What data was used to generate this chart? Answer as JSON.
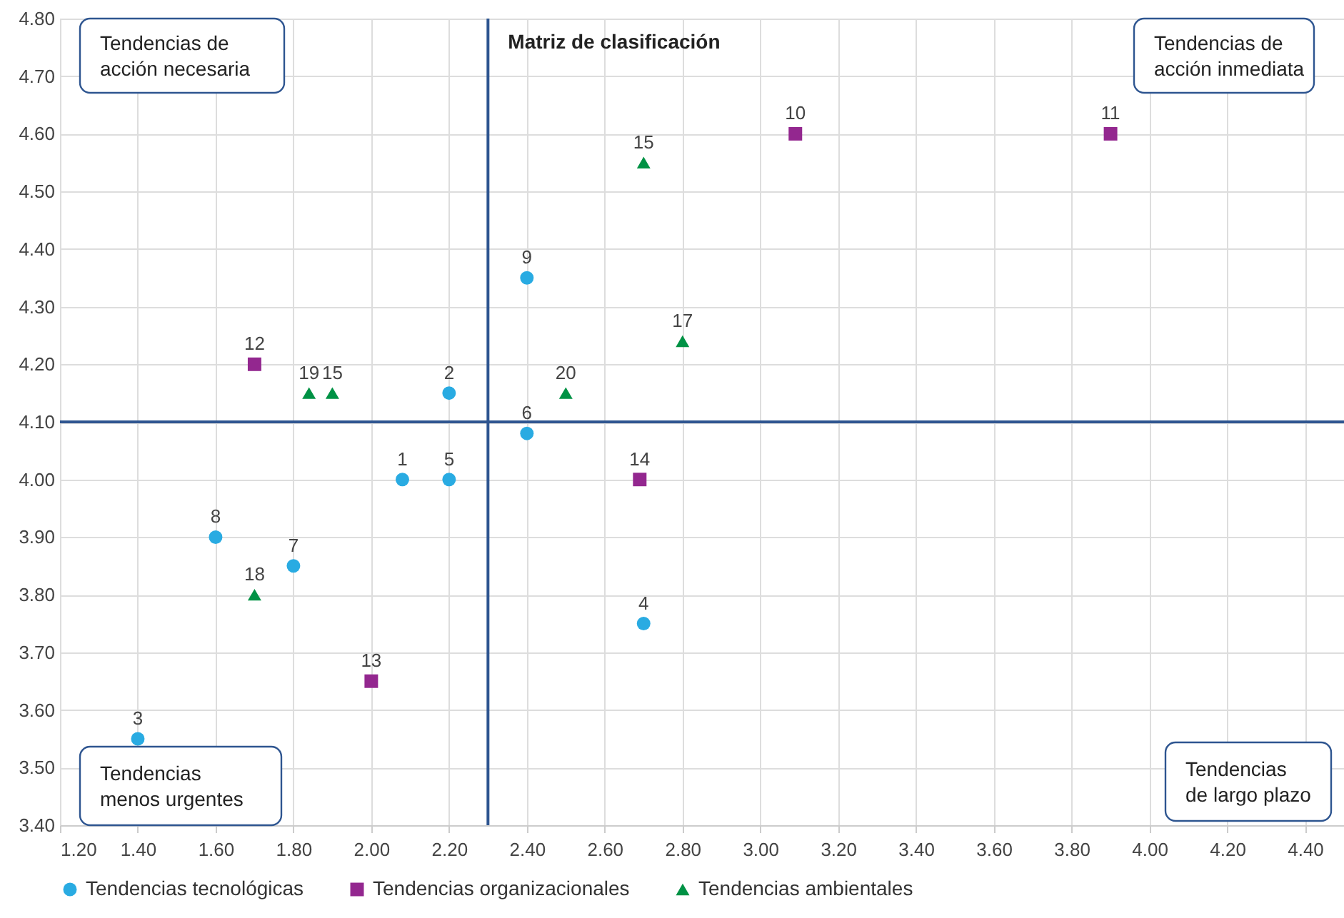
{
  "chart_data": {
    "type": "scatter",
    "xlim": [
      1.2,
      4.5
    ],
    "ylim": [
      3.4,
      4.8
    ],
    "xticks": [
      {
        "value": 1.2,
        "label": "1.20"
      },
      {
        "value": 1.4,
        "label": "1.40"
      },
      {
        "value": 1.6,
        "label": "1.60"
      },
      {
        "value": 1.8,
        "label": "1.80"
      },
      {
        "value": 2.0,
        "label": "2.00"
      },
      {
        "value": 2.2,
        "label": "2.20"
      },
      {
        "value": 2.4,
        "label": "2.40"
      },
      {
        "value": 2.6,
        "label": "2.60"
      },
      {
        "value": 2.8,
        "label": "2.80"
      },
      {
        "value": 3.0,
        "label": "3.00"
      },
      {
        "value": 3.2,
        "label": "3.20"
      },
      {
        "value": 3.4,
        "label": "3.40"
      },
      {
        "value": 3.6,
        "label": "3.60"
      },
      {
        "value": 3.8,
        "label": "3.80"
      },
      {
        "value": 4.0,
        "label": "4.00"
      },
      {
        "value": 4.2,
        "label": "4.20"
      },
      {
        "value": 4.4,
        "label": "4.40"
      }
    ],
    "yticks": [
      {
        "value": 3.4,
        "label": "3.40"
      },
      {
        "value": 3.5,
        "label": "3.50"
      },
      {
        "value": 3.6,
        "label": "3.60"
      },
      {
        "value": 3.7,
        "label": "3.70"
      },
      {
        "value": 3.8,
        "label": "3.80"
      },
      {
        "value": 3.9,
        "label": "3.90"
      },
      {
        "value": 4.0,
        "label": "4.00"
      },
      {
        "value": 4.1,
        "label": "4.10"
      },
      {
        "value": 4.2,
        "label": "4.20"
      },
      {
        "value": 4.3,
        "label": "4.30"
      },
      {
        "value": 4.4,
        "label": "4.40"
      },
      {
        "value": 4.5,
        "label": "4.50"
      },
      {
        "value": 4.6,
        "label": "4.60"
      },
      {
        "value": 4.7,
        "label": "4.70"
      },
      {
        "value": 4.8,
        "label": "4.80"
      }
    ],
    "grid": true,
    "legend": "bottom",
    "series": [
      {
        "name": "Tendencias tecnológicas",
        "color": "#29abe2",
        "marker": "circle",
        "x": [
          2.08,
          2.2,
          1.4,
          2.7,
          2.2,
          2.4,
          1.8,
          1.6,
          2.4
        ],
        "values": [
          4.0,
          4.15,
          3.55,
          3.75,
          4.0,
          4.08,
          3.85,
          3.9,
          4.35
        ]
      },
      {
        "name": "Tendencias organizacionales",
        "color": "#93278f",
        "marker": "square",
        "x": [
          3.09,
          3.9,
          1.7,
          2.0,
          2.69
        ],
        "values": [
          4.6,
          4.6,
          4.2,
          3.65,
          4.0
        ]
      },
      {
        "name": "Tendencias ambientales",
        "color": "#009245",
        "marker": "triangle",
        "x": [
          2.7,
          1.84,
          1.9,
          2.8,
          1.7,
          2.5
        ],
        "values": [
          4.55,
          4.15,
          4.15,
          4.24,
          3.8,
          4.15
        ]
      }
    ],
    "ref_lines": [
      {
        "axis": "x",
        "value": 2.3,
        "label": "Matriz de clasificación",
        "color": "#2e5590"
      },
      {
        "axis": "y",
        "value": 4.1,
        "label": null,
        "color": "#2e5590"
      }
    ],
    "annotations": [
      "Tendencias de\nacción necesaria",
      "Tendencias de\nacción inmediata",
      "Tendencias\nmenos urgentes",
      "Tendencias\nde largo plazo",
      {
        "text": "1",
        "x": 2.08,
        "y": 4.0
      },
      {
        "text": "2",
        "x": 2.2,
        "y": 4.15
      },
      {
        "text": "3",
        "x": 1.4,
        "y": 3.55
      },
      {
        "text": "4",
        "x": 2.7,
        "y": 3.75
      },
      {
        "text": "5",
        "x": 2.2,
        "y": 4.0
      },
      {
        "text": "6",
        "x": 2.4,
        "y": 4.08
      },
      {
        "text": "7",
        "x": 1.8,
        "y": 3.85
      },
      {
        "text": "8",
        "x": 1.6,
        "y": 3.9
      },
      {
        "text": "9",
        "x": 2.4,
        "y": 4.35
      },
      {
        "text": "10",
        "x": 3.09,
        "y": 4.6
      },
      {
        "text": "11",
        "x": 3.9,
        "y": 4.6
      },
      {
        "text": "12",
        "x": 1.7,
        "y": 4.2
      },
      {
        "text": "13",
        "x": 2.0,
        "y": 3.65
      },
      {
        "text": "14",
        "x": 2.69,
        "y": 4.0
      },
      {
        "text": "15",
        "x": 2.7,
        "y": 4.55
      },
      {
        "text": "19",
        "x": 1.84,
        "y": 4.15
      },
      {
        "text": "15",
        "x": 1.9,
        "y": 4.15
      },
      {
        "text": "17",
        "x": 2.8,
        "y": 4.24
      },
      {
        "text": "18",
        "x": 1.7,
        "y": 3.8
      },
      {
        "text": "20",
        "x": 2.5,
        "y": 4.15
      }
    ]
  }
}
